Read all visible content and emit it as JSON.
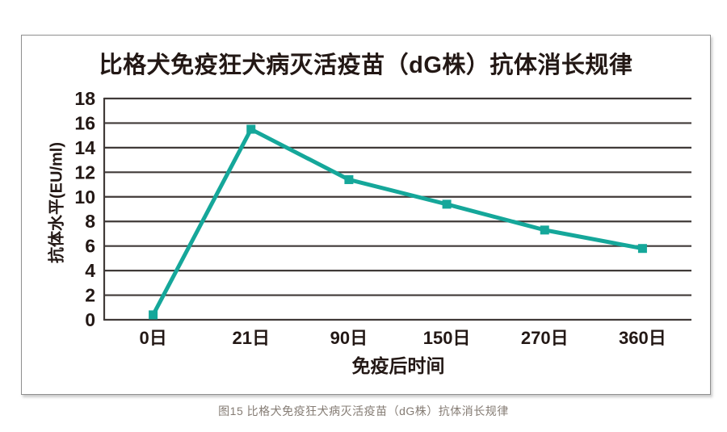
{
  "figure": {
    "caption": "图15 比格犬免疫狂犬病灭活疫苗（dG株）抗体消长规律"
  },
  "chart_data": {
    "type": "line",
    "title": "比格犬免疫狂犬病灭活疫苗（dG株）抗体消长规律",
    "xlabel": "免疫后时间",
    "ylabel": "抗体水平(EU/ml)",
    "categories": [
      "0日",
      "21日",
      "90日",
      "150日",
      "270日",
      "360日"
    ],
    "series": [
      {
        "name": "抗体水平",
        "values": [
          0.4,
          15.5,
          11.4,
          9.4,
          7.3,
          5.8
        ]
      }
    ],
    "ylim": [
      0,
      18
    ],
    "ytick_step": 2,
    "grid": true,
    "legend": "none",
    "marker": "square",
    "colors": {
      "line": "#15a79a",
      "text": "#231815",
      "grid": "#403a38",
      "caption": "#857c74"
    }
  }
}
